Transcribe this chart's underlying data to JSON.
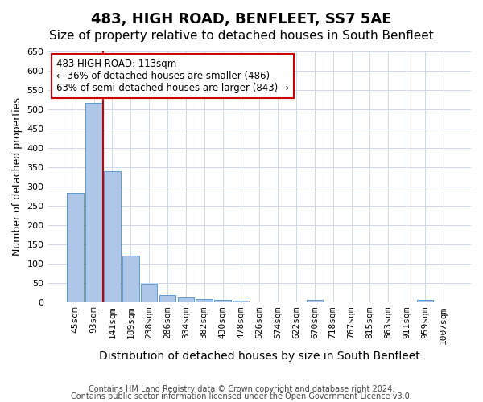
{
  "title": "483, HIGH ROAD, BENFLEET, SS7 5AE",
  "subtitle": "Size of property relative to detached houses in South Benfleet",
  "xlabel": "Distribution of detached houses by size in South Benfleet",
  "ylabel": "Number of detached properties",
  "footer_line1": "Contains HM Land Registry data © Crown copyright and database right 2024.",
  "footer_line2": "Contains public sector information licensed under the Open Government Licence v3.0.",
  "bin_labels": [
    "45sqm",
    "93sqm",
    "141sqm",
    "189sqm",
    "238sqm",
    "286sqm",
    "334sqm",
    "382sqm",
    "430sqm",
    "478sqm",
    "526sqm",
    "574sqm",
    "622sqm",
    "670sqm",
    "718sqm",
    "767sqm",
    "815sqm",
    "863sqm",
    "911sqm",
    "959sqm",
    "1007sqm"
  ],
  "bar_heights": [
    283,
    517,
    340,
    120,
    47,
    17,
    12,
    8,
    5,
    3,
    0,
    0,
    0,
    5,
    0,
    0,
    0,
    0,
    0,
    5,
    0
  ],
  "bar_color": "#aec6e8",
  "bar_edge_color": "#5b9bd5",
  "background_color": "#ffffff",
  "grid_color": "#d0d8e8",
  "vline_x": 1.5,
  "vline_color": "#cc0000",
  "annotation_text": "483 HIGH ROAD: 113sqm\n← 36% of detached houses are smaller (486)\n63% of semi-detached houses are larger (843) →",
  "annotation_box_color": "#ffffff",
  "annotation_box_edge_color": "#cc0000",
  "ylim": [
    0,
    650
  ],
  "yticks": [
    0,
    50,
    100,
    150,
    200,
    250,
    300,
    350,
    400,
    450,
    500,
    550,
    600,
    650
  ],
  "title_fontsize": 13,
  "subtitle_fontsize": 11,
  "xlabel_fontsize": 10,
  "ylabel_fontsize": 9,
  "annotation_fontsize": 8.5,
  "tick_fontsize": 8
}
